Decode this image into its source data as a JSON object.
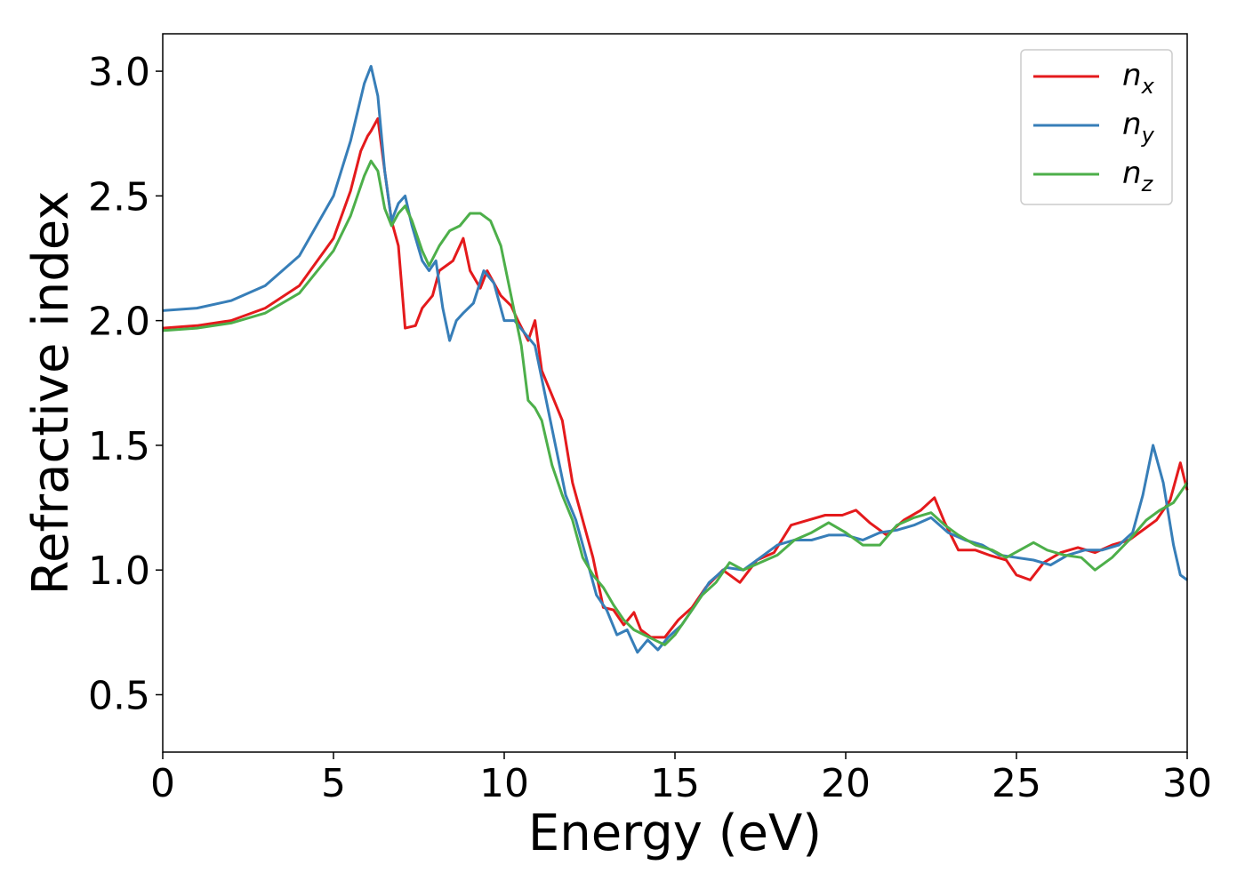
{
  "chart_data": {
    "type": "line",
    "title": "",
    "xlabel": "Energy (eV)",
    "ylabel": "Refractive index",
    "xlim": [
      0,
      30
    ],
    "ylim": [
      0.27,
      3.15
    ],
    "xticks": [
      0,
      5,
      10,
      15,
      20,
      25,
      30
    ],
    "yticks": [
      0.5,
      1.0,
      1.5,
      2.0,
      2.5,
      3.0
    ],
    "xtick_labels": [
      "0",
      "5",
      "10",
      "15",
      "20",
      "25",
      "30"
    ],
    "ytick_labels": [
      "0.5",
      "1.0",
      "1.5",
      "2.0",
      "2.5",
      "3.0"
    ],
    "grid": false,
    "legend_position": "top-right",
    "series": [
      {
        "name": "n",
        "subscript": "x",
        "color": "#e41a1c",
        "points": [
          [
            0,
            1.97
          ],
          [
            1,
            1.98
          ],
          [
            2,
            2.0
          ],
          [
            3,
            2.05
          ],
          [
            4,
            2.14
          ],
          [
            5,
            2.33
          ],
          [
            5.5,
            2.52
          ],
          [
            5.8,
            2.68
          ],
          [
            6.0,
            2.74
          ],
          [
            6.1,
            2.76
          ],
          [
            6.3,
            2.81
          ],
          [
            6.5,
            2.6
          ],
          [
            6.7,
            2.4
          ],
          [
            6.9,
            2.3
          ],
          [
            7.1,
            1.97
          ],
          [
            7.4,
            1.98
          ],
          [
            7.6,
            2.05
          ],
          [
            7.9,
            2.1
          ],
          [
            8.1,
            2.2
          ],
          [
            8.5,
            2.24
          ],
          [
            8.8,
            2.33
          ],
          [
            9.0,
            2.2
          ],
          [
            9.3,
            2.13
          ],
          [
            9.5,
            2.2
          ],
          [
            9.9,
            2.1
          ],
          [
            10.2,
            2.06
          ],
          [
            10.4,
            2.0
          ],
          [
            10.7,
            1.92
          ],
          [
            10.9,
            2.0
          ],
          [
            11.1,
            1.8
          ],
          [
            11.4,
            1.7
          ],
          [
            11.7,
            1.6
          ],
          [
            12.0,
            1.35
          ],
          [
            12.3,
            1.2
          ],
          [
            12.6,
            1.05
          ],
          [
            12.9,
            0.85
          ],
          [
            13.2,
            0.84
          ],
          [
            13.5,
            0.78
          ],
          [
            13.8,
            0.83
          ],
          [
            14.0,
            0.76
          ],
          [
            14.3,
            0.73
          ],
          [
            14.7,
            0.73
          ],
          [
            15.1,
            0.8
          ],
          [
            15.5,
            0.85
          ],
          [
            15.9,
            0.93
          ],
          [
            16.4,
            1.0
          ],
          [
            16.9,
            0.95
          ],
          [
            17.4,
            1.04
          ],
          [
            17.9,
            1.07
          ],
          [
            18.4,
            1.18
          ],
          [
            18.9,
            1.2
          ],
          [
            19.4,
            1.22
          ],
          [
            19.9,
            1.22
          ],
          [
            20.3,
            1.24
          ],
          [
            20.7,
            1.19
          ],
          [
            21.2,
            1.14
          ],
          [
            21.7,
            1.2
          ],
          [
            22.2,
            1.24
          ],
          [
            22.6,
            1.29
          ],
          [
            22.9,
            1.19
          ],
          [
            23.3,
            1.08
          ],
          [
            23.8,
            1.08
          ],
          [
            24.2,
            1.06
          ],
          [
            24.7,
            1.04
          ],
          [
            25.0,
            0.98
          ],
          [
            25.4,
            0.96
          ],
          [
            25.8,
            1.03
          ],
          [
            26.3,
            1.07
          ],
          [
            26.8,
            1.09
          ],
          [
            27.3,
            1.07
          ],
          [
            27.8,
            1.1
          ],
          [
            28.3,
            1.12
          ],
          [
            28.8,
            1.17
          ],
          [
            29.1,
            1.2
          ],
          [
            29.5,
            1.28
          ],
          [
            29.8,
            1.43
          ],
          [
            30.0,
            1.32
          ]
        ]
      },
      {
        "name": "n",
        "subscript": "y",
        "color": "#377eb8",
        "points": [
          [
            0,
            2.04
          ],
          [
            1,
            2.05
          ],
          [
            2,
            2.08
          ],
          [
            3,
            2.14
          ],
          [
            4,
            2.26
          ],
          [
            5,
            2.5
          ],
          [
            5.5,
            2.72
          ],
          [
            5.9,
            2.95
          ],
          [
            6.1,
            3.02
          ],
          [
            6.3,
            2.9
          ],
          [
            6.5,
            2.6
          ],
          [
            6.7,
            2.4
          ],
          [
            6.9,
            2.47
          ],
          [
            7.1,
            2.5
          ],
          [
            7.3,
            2.38
          ],
          [
            7.6,
            2.24
          ],
          [
            7.8,
            2.2
          ],
          [
            8.0,
            2.24
          ],
          [
            8.2,
            2.05
          ],
          [
            8.4,
            1.92
          ],
          [
            8.6,
            2.0
          ],
          [
            8.8,
            2.03
          ],
          [
            9.1,
            2.07
          ],
          [
            9.4,
            2.2
          ],
          [
            9.7,
            2.15
          ],
          [
            10.0,
            2.0
          ],
          [
            10.3,
            2.0
          ],
          [
            10.6,
            1.95
          ],
          [
            10.9,
            1.9
          ],
          [
            11.2,
            1.7
          ],
          [
            11.5,
            1.5
          ],
          [
            11.8,
            1.3
          ],
          [
            12.1,
            1.2
          ],
          [
            12.4,
            1.05
          ],
          [
            12.7,
            0.9
          ],
          [
            13.0,
            0.84
          ],
          [
            13.3,
            0.74
          ],
          [
            13.6,
            0.76
          ],
          [
            13.9,
            0.67
          ],
          [
            14.2,
            0.72
          ],
          [
            14.5,
            0.68
          ],
          [
            14.8,
            0.73
          ],
          [
            15.2,
            0.78
          ],
          [
            15.6,
            0.86
          ],
          [
            16.0,
            0.95
          ],
          [
            16.5,
            1.01
          ],
          [
            17.0,
            1.0
          ],
          [
            17.5,
            1.05
          ],
          [
            18.0,
            1.1
          ],
          [
            18.5,
            1.12
          ],
          [
            19.0,
            1.12
          ],
          [
            19.5,
            1.14
          ],
          [
            20.0,
            1.14
          ],
          [
            20.5,
            1.12
          ],
          [
            21.0,
            1.15
          ],
          [
            21.5,
            1.16
          ],
          [
            22.0,
            1.18
          ],
          [
            22.5,
            1.21
          ],
          [
            23.0,
            1.15
          ],
          [
            23.5,
            1.12
          ],
          [
            24.0,
            1.1
          ],
          [
            24.5,
            1.06
          ],
          [
            25.0,
            1.05
          ],
          [
            25.5,
            1.04
          ],
          [
            26.0,
            1.02
          ],
          [
            26.5,
            1.06
          ],
          [
            27.0,
            1.08
          ],
          [
            27.5,
            1.08
          ],
          [
            28.0,
            1.1
          ],
          [
            28.4,
            1.15
          ],
          [
            28.7,
            1.3
          ],
          [
            29.0,
            1.5
          ],
          [
            29.3,
            1.35
          ],
          [
            29.6,
            1.1
          ],
          [
            29.8,
            0.98
          ],
          [
            30.0,
            0.96
          ]
        ]
      },
      {
        "name": "n",
        "subscript": "z",
        "color": "#4daf4a",
        "points": [
          [
            0,
            1.96
          ],
          [
            1,
            1.97
          ],
          [
            2,
            1.99
          ],
          [
            3,
            2.03
          ],
          [
            4,
            2.11
          ],
          [
            5,
            2.28
          ],
          [
            5.5,
            2.42
          ],
          [
            5.9,
            2.58
          ],
          [
            6.1,
            2.64
          ],
          [
            6.3,
            2.6
          ],
          [
            6.5,
            2.45
          ],
          [
            6.7,
            2.38
          ],
          [
            6.9,
            2.43
          ],
          [
            7.1,
            2.46
          ],
          [
            7.3,
            2.4
          ],
          [
            7.6,
            2.28
          ],
          [
            7.8,
            2.22
          ],
          [
            8.1,
            2.3
          ],
          [
            8.4,
            2.36
          ],
          [
            8.7,
            2.38
          ],
          [
            9.0,
            2.43
          ],
          [
            9.3,
            2.43
          ],
          [
            9.6,
            2.4
          ],
          [
            9.9,
            2.3
          ],
          [
            10.2,
            2.1
          ],
          [
            10.5,
            1.9
          ],
          [
            10.7,
            1.68
          ],
          [
            10.9,
            1.65
          ],
          [
            11.1,
            1.6
          ],
          [
            11.4,
            1.42
          ],
          [
            11.7,
            1.3
          ],
          [
            12.0,
            1.2
          ],
          [
            12.3,
            1.05
          ],
          [
            12.6,
            0.98
          ],
          [
            12.9,
            0.93
          ],
          [
            13.2,
            0.86
          ],
          [
            13.5,
            0.8
          ],
          [
            13.8,
            0.76
          ],
          [
            14.1,
            0.74
          ],
          [
            14.4,
            0.72
          ],
          [
            14.7,
            0.7
          ],
          [
            15.0,
            0.74
          ],
          [
            15.4,
            0.82
          ],
          [
            15.8,
            0.9
          ],
          [
            16.2,
            0.95
          ],
          [
            16.6,
            1.03
          ],
          [
            17.0,
            1.0
          ],
          [
            17.5,
            1.03
          ],
          [
            18.0,
            1.06
          ],
          [
            18.5,
            1.12
          ],
          [
            19.0,
            1.15
          ],
          [
            19.5,
            1.19
          ],
          [
            20.0,
            1.15
          ],
          [
            20.5,
            1.1
          ],
          [
            21.0,
            1.1
          ],
          [
            21.5,
            1.18
          ],
          [
            22.0,
            1.21
          ],
          [
            22.5,
            1.23
          ],
          [
            22.9,
            1.18
          ],
          [
            23.3,
            1.14
          ],
          [
            23.8,
            1.1
          ],
          [
            24.3,
            1.08
          ],
          [
            24.7,
            1.05
          ],
          [
            25.1,
            1.08
          ],
          [
            25.5,
            1.11
          ],
          [
            25.9,
            1.08
          ],
          [
            26.4,
            1.06
          ],
          [
            26.9,
            1.05
          ],
          [
            27.3,
            1.0
          ],
          [
            27.8,
            1.05
          ],
          [
            28.3,
            1.12
          ],
          [
            28.8,
            1.2
          ],
          [
            29.2,
            1.24
          ],
          [
            29.6,
            1.27
          ],
          [
            30.0,
            1.35
          ]
        ]
      }
    ]
  }
}
